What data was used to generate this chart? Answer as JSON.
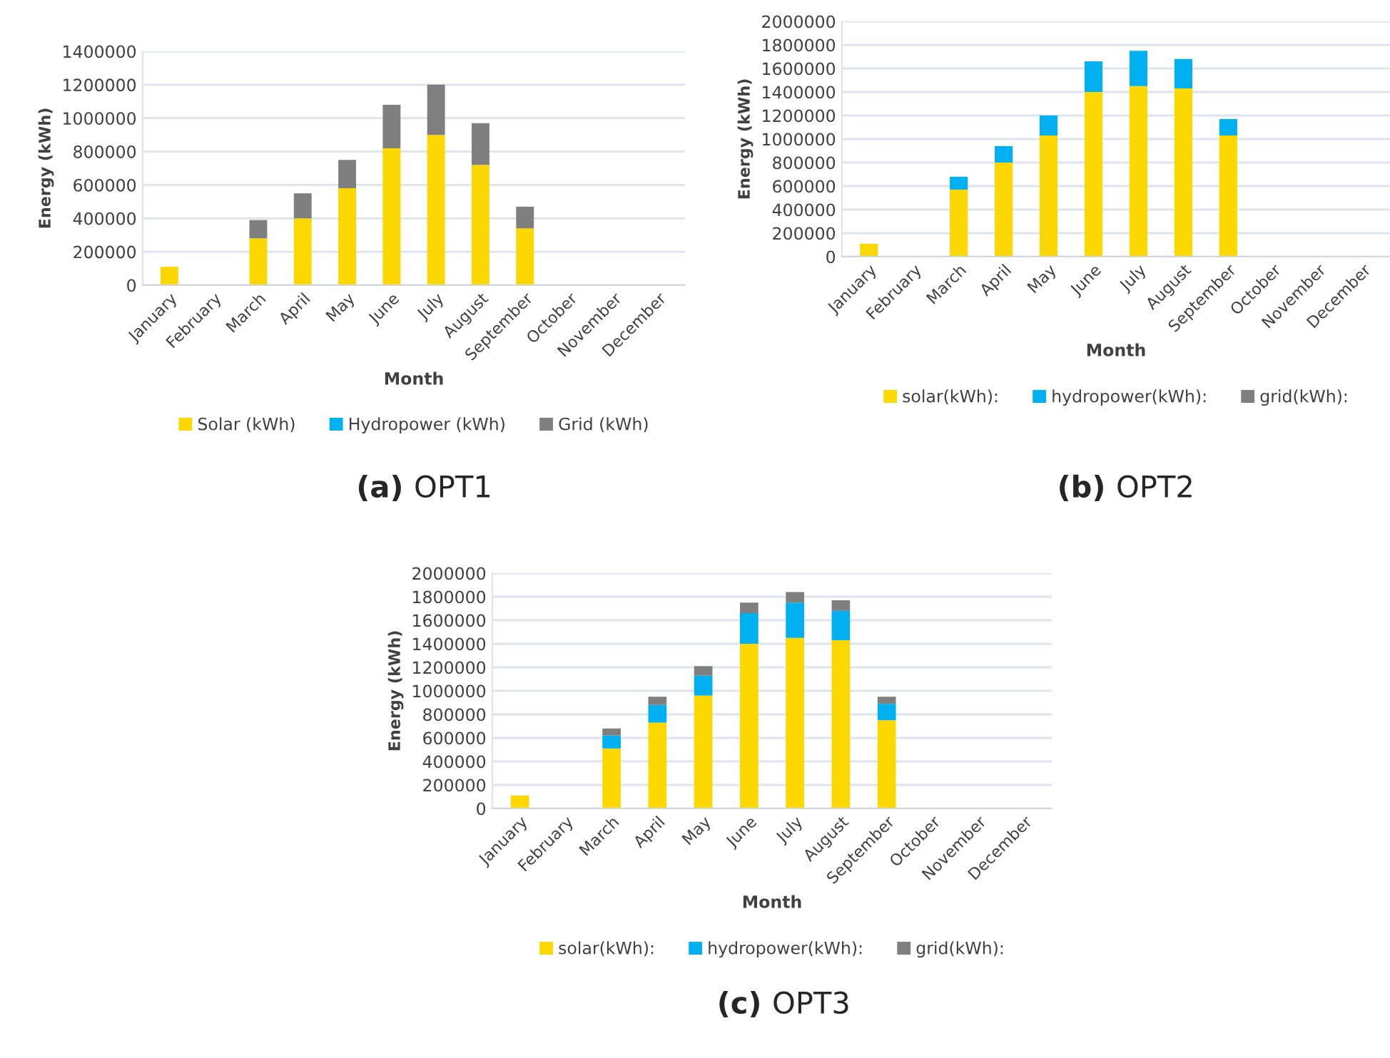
{
  "chart_data": [
    {
      "type": "bar",
      "title": "(a) OPT1",
      "xlabel": "Month",
      "ylabel": "Energy (kWh)",
      "stacked": true,
      "grid": "y",
      "legend": "bottom",
      "categories": [
        "January",
        "February",
        "March",
        "April",
        "May",
        "June",
        "July",
        "August",
        "September",
        "October",
        "November",
        "December"
      ],
      "ylim": [
        0,
        1400000
      ],
      "yticks": [
        0,
        200000,
        400000,
        600000,
        800000,
        1000000,
        1200000,
        1400000
      ],
      "series": [
        {
          "name": "Solar (kWh)",
          "color": "#fcd800",
          "values": [
            110000,
            0,
            280000,
            400000,
            580000,
            820000,
            900000,
            720000,
            340000,
            0,
            0,
            0
          ]
        },
        {
          "name": "Hydropower (kWh)",
          "color": "#00b0f0",
          "values": [
            0,
            0,
            0,
            0,
            0,
            0,
            0,
            0,
            0,
            0,
            0,
            0
          ]
        },
        {
          "name": "Grid (kWh)",
          "color": "#7f7f7f",
          "values": [
            0,
            0,
            110000,
            150000,
            170000,
            260000,
            300000,
            250000,
            130000,
            0,
            0,
            0
          ]
        }
      ]
    },
    {
      "type": "bar",
      "title": "(b) OPT2",
      "xlabel": "Month",
      "ylabel": "Energy (kWh)",
      "stacked": true,
      "grid": "y",
      "legend": "bottom",
      "categories": [
        "January",
        "February",
        "March",
        "April",
        "May",
        "June",
        "July",
        "August",
        "September",
        "October",
        "November",
        "December"
      ],
      "ylim": [
        0,
        2000000
      ],
      "yticks": [
        0,
        200000,
        400000,
        600000,
        800000,
        1000000,
        1200000,
        1400000,
        1600000,
        1800000,
        2000000
      ],
      "series": [
        {
          "name": "solar(kWh):",
          "color": "#fcd800",
          "values": [
            110000,
            0,
            570000,
            800000,
            1030000,
            1400000,
            1450000,
            1430000,
            1030000,
            0,
            0,
            0
          ]
        },
        {
          "name": "hydropower(kWh):",
          "color": "#00b0f0",
          "values": [
            0,
            0,
            110000,
            140000,
            170000,
            260000,
            300000,
            250000,
            140000,
            0,
            0,
            0
          ]
        },
        {
          "name": "grid(kWh):",
          "color": "#7f7f7f",
          "values": [
            0,
            0,
            0,
            0,
            0,
            0,
            0,
            0,
            0,
            0,
            0,
            0
          ]
        }
      ]
    },
    {
      "type": "bar",
      "title": "(c) OPT3",
      "xlabel": "Month",
      "ylabel": "Energy (kWh)",
      "stacked": true,
      "grid": "y",
      "legend": "bottom",
      "categories": [
        "January",
        "February",
        "March",
        "April",
        "May",
        "June",
        "July",
        "August",
        "September",
        "October",
        "November",
        "December"
      ],
      "ylim": [
        0,
        2000000
      ],
      "yticks": [
        0,
        200000,
        400000,
        600000,
        800000,
        1000000,
        1200000,
        1400000,
        1600000,
        1800000,
        2000000
      ],
      "series": [
        {
          "name": "solar(kWh):",
          "color": "#fcd800",
          "values": [
            110000,
            0,
            510000,
            730000,
            960000,
            1400000,
            1450000,
            1430000,
            750000,
            0,
            0,
            0
          ]
        },
        {
          "name": "hydropower(kWh):",
          "color": "#00b0f0",
          "values": [
            0,
            0,
            110000,
            150000,
            170000,
            260000,
            300000,
            250000,
            140000,
            0,
            0,
            0
          ]
        },
        {
          "name": "grid(kWh):",
          "color": "#7f7f7f",
          "values": [
            0,
            0,
            60000,
            70000,
            80000,
            90000,
            90000,
            90000,
            60000,
            0,
            0,
            0
          ]
        }
      ]
    }
  ]
}
